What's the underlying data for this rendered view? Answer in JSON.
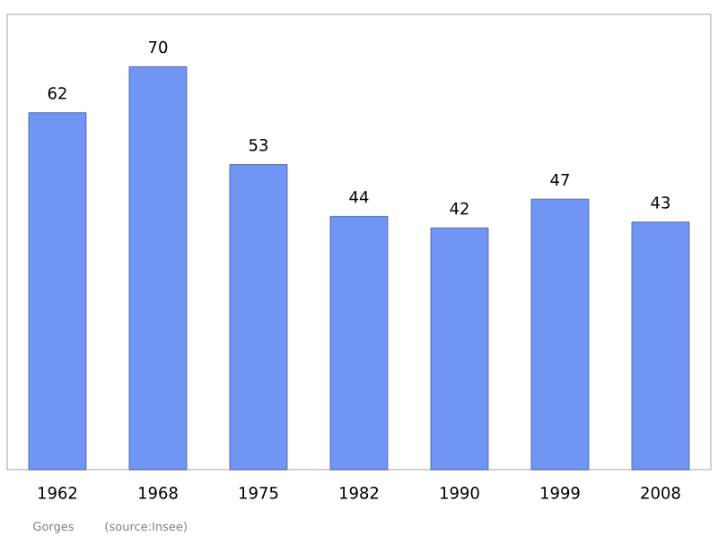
{
  "chart_data": {
    "type": "bar",
    "categories": [
      "1962",
      "1968",
      "1975",
      "1982",
      "1990",
      "1999",
      "2008"
    ],
    "values": [
      62,
      70,
      53,
      44,
      42,
      47,
      43
    ],
    "color": "#7095f5",
    "data_labels": true,
    "annotations": [
      "Gorges",
      "(source:Insee)"
    ]
  }
}
